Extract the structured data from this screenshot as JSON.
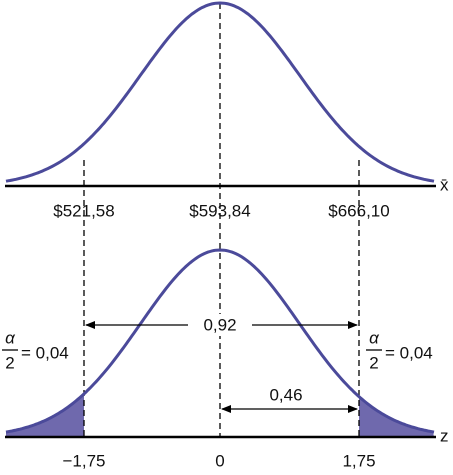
{
  "top_panel": {
    "axis_label": "x̄",
    "tick_labels": [
      "$521,58",
      "$593,84",
      "$666,10"
    ]
  },
  "bottom_panel": {
    "axis_label": "z",
    "tick_labels": [
      "−1,75",
      "0",
      "1,75"
    ],
    "width_label": "0,92",
    "half_width_label": "0,46",
    "tail_labels": [
      {
        "numerator": "α",
        "denominator": "2",
        "value": "= 0,04"
      },
      {
        "numerator": "α",
        "denominator": "2",
        "value": "= 0,04"
      }
    ]
  }
}
